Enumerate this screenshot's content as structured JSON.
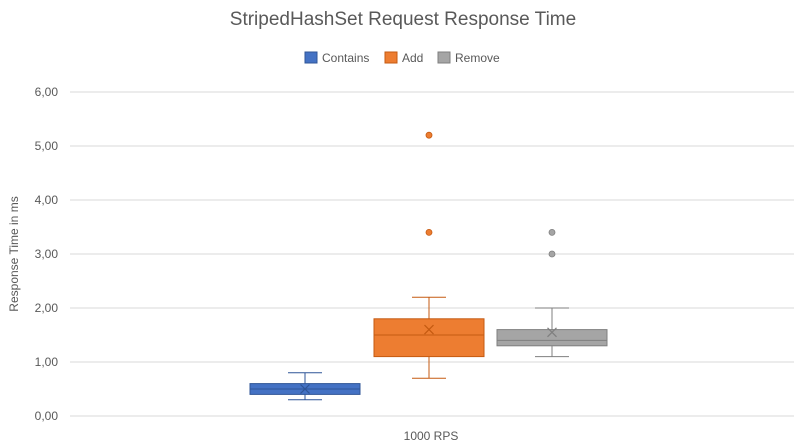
{
  "chart_data": {
    "type": "boxplot",
    "title": "StripedHashSet Request Response Time",
    "xlabel": "",
    "ylabel": "Response Time in ms",
    "categories": [
      "1000 RPS"
    ],
    "ylim": [
      0,
      6
    ],
    "y_ticks": [
      0,
      1,
      2,
      3,
      4,
      5,
      6
    ],
    "y_tick_labels": [
      "0,00",
      "1,00",
      "2,00",
      "3,00",
      "4,00",
      "5,00",
      "6,00"
    ],
    "legend_position": "top-center",
    "grid": true,
    "series": [
      {
        "name": "Contains",
        "color": "#4472c4",
        "stroke": "#2f5597",
        "whisker_low": 0.3,
        "q1": 0.4,
        "median": 0.5,
        "q3": 0.6,
        "whisker_high": 0.8,
        "mean": 0.5,
        "outliers": []
      },
      {
        "name": "Add",
        "color": "#ed7d31",
        "stroke": "#c55a11",
        "whisker_low": 0.7,
        "q1": 1.1,
        "median": 1.5,
        "q3": 1.8,
        "whisker_high": 2.2,
        "mean": 1.6,
        "outliers": [
          3.4,
          5.2
        ]
      },
      {
        "name": "Remove",
        "color": "#a5a5a5",
        "stroke": "#7f7f7f",
        "whisker_low": 1.1,
        "q1": 1.3,
        "median": 1.4,
        "q3": 1.6,
        "whisker_high": 2.0,
        "mean": 1.55,
        "outliers": [
          3.0,
          3.4
        ]
      }
    ]
  }
}
